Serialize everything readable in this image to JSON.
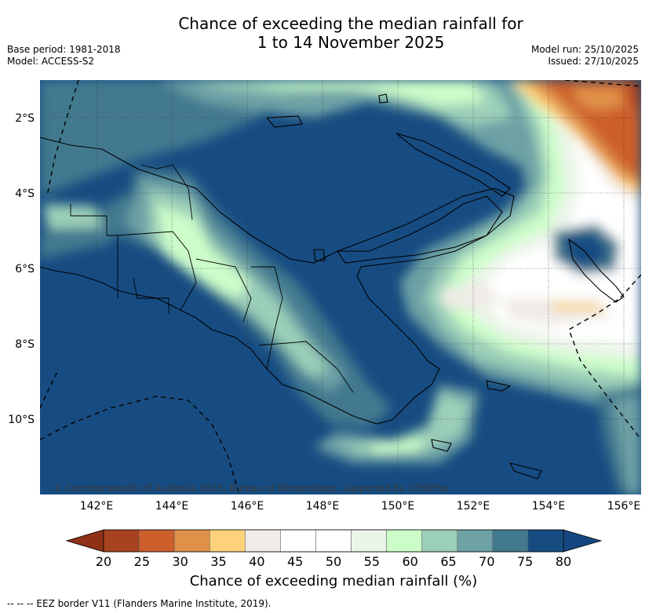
{
  "title_line1": "Chance of exceeding the median rainfall for",
  "title_line2": "1 to 14 November 2025",
  "meta_left": [
    "Base period: 1981-2018",
    "Model: ACCESS-S2"
  ],
  "meta_right": [
    "Model run: 25/10/2025",
    "Issued: 27/10/2025"
  ],
  "map": {
    "lat_ticks": [
      "2°S",
      "4°S",
      "6°S",
      "8°S",
      "10°S"
    ],
    "lon_ticks": [
      "142°E",
      "144°E",
      "146°E",
      "148°E",
      "150°E",
      "152°E",
      "154°E",
      "156°E"
    ],
    "copyright": "© Commonwealth of Australia 2025, Bureau of Meteorology, supported by COSPPac"
  },
  "colorbar": {
    "title": "Chance of exceeding median rainfall (%)",
    "tick_labels": [
      "20",
      "25",
      "30",
      "35",
      "40",
      "45",
      "50",
      "55",
      "60",
      "65",
      "70",
      "75",
      "80"
    ],
    "colors": [
      "#a8431f",
      "#cc5f2c",
      "#e0914a",
      "#fdd27a",
      "#efebe6",
      "#ffffff",
      "#ffffff",
      "#eaf5e8",
      "#ccfdc9",
      "#9bcfb8",
      "#6da1a5",
      "#42798f",
      "#174c82"
    ],
    "left_extend_color": "#8f3116",
    "right_extend_color": "#16467f"
  },
  "footnote": "-- -- -- EEZ border V11 (Flanders Marine Institute, 2019)."
}
